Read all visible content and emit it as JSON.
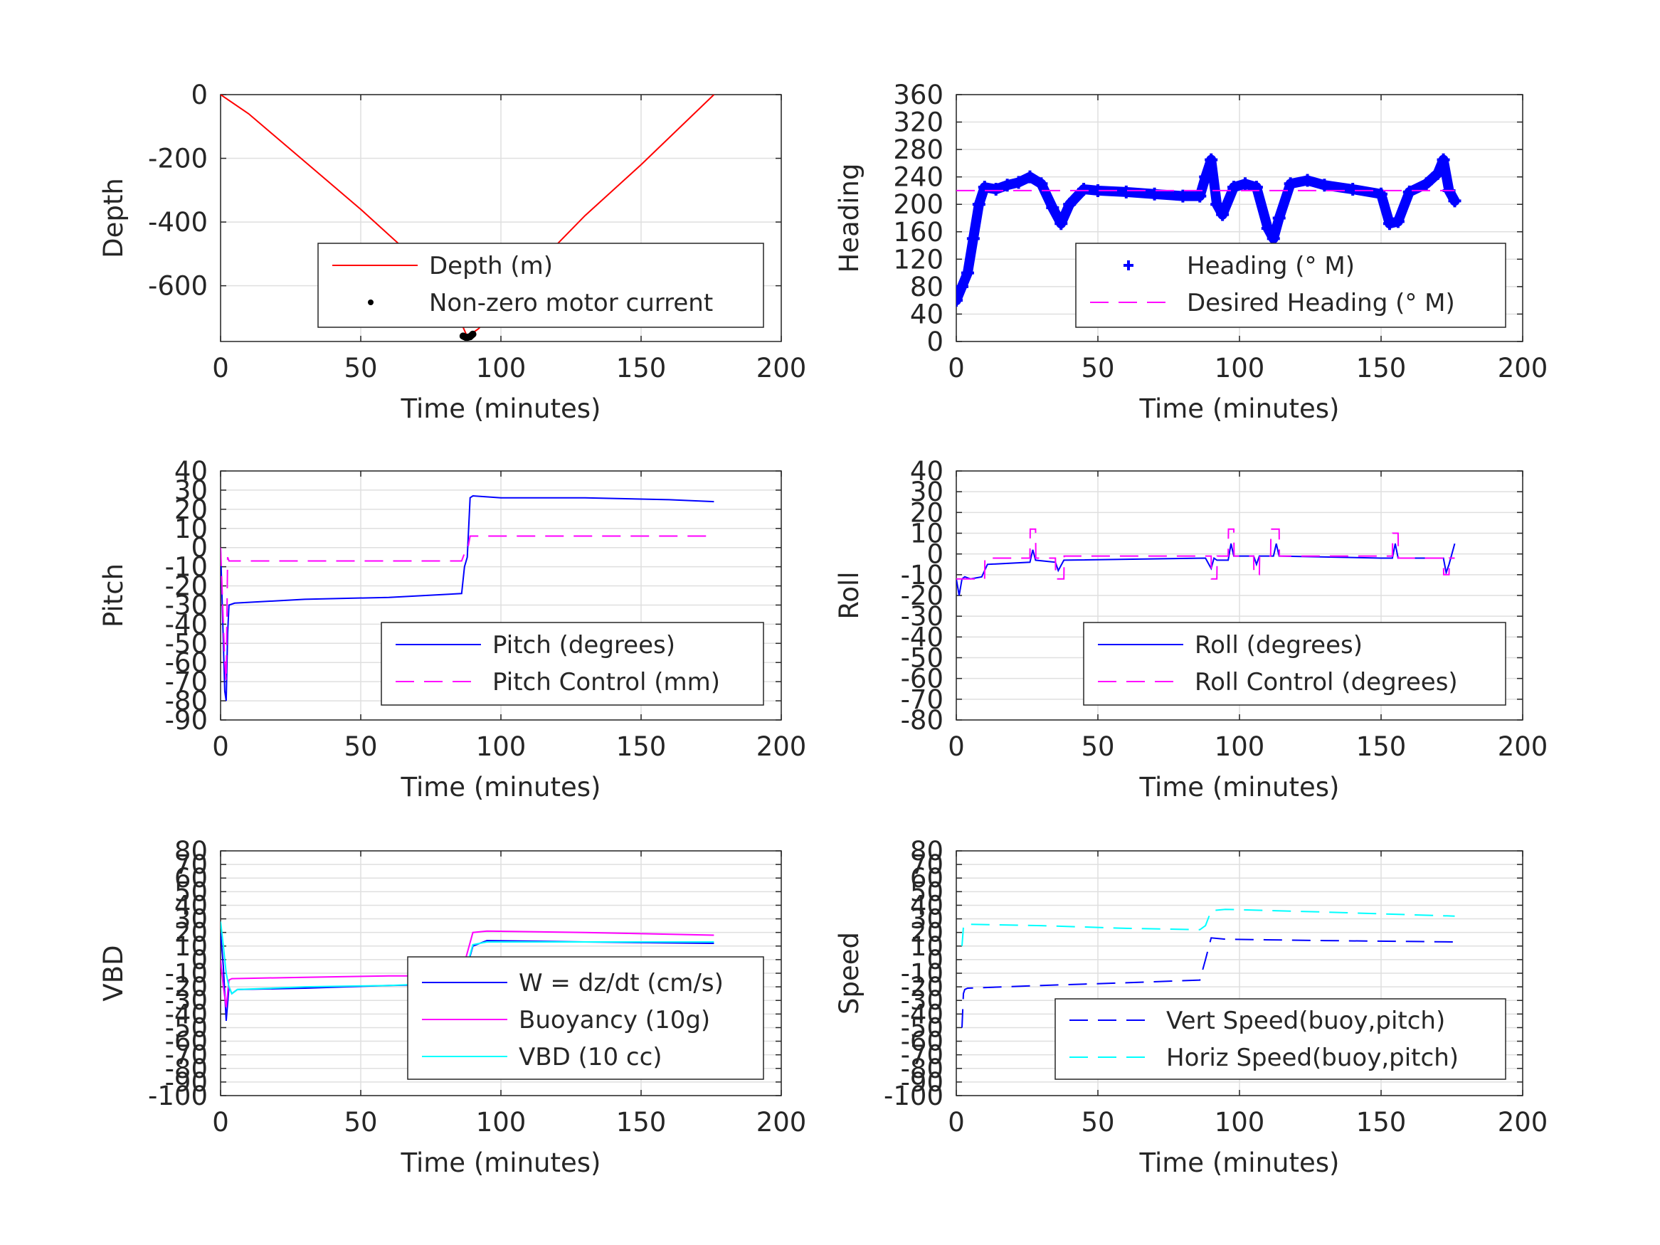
{
  "chart_data": [
    {
      "type": "line",
      "xlabel": "Time (minutes)",
      "ylabel": "Depth",
      "xlim": [
        0,
        200
      ],
      "ylim": [
        -775,
        0
      ],
      "xticks": [
        0,
        50,
        100,
        150,
        200
      ],
      "yticks": [
        0,
        -200,
        -400,
        -600
      ],
      "ytick_labels": [
        "0",
        "-200",
        "-400",
        "-600"
      ],
      "grid": true,
      "legend_position": "bottom-right",
      "series": [
        {
          "name": "Depth (m)",
          "color": "#ff0000",
          "style": "solid",
          "x": [
            0,
            10,
            30,
            50,
            70,
            85,
            88,
            92,
            110,
            130,
            150,
            176
          ],
          "y": [
            0,
            -60,
            -210,
            -360,
            -520,
            -700,
            -760,
            -735,
            -560,
            -380,
            -220,
            0
          ]
        },
        {
          "name": "Non-zero motor current",
          "color": "#000000",
          "style": "dots",
          "x": [
            86.5,
            87,
            87.5,
            88,
            88.5,
            89,
            89.5,
            90
          ],
          "y": [
            -758,
            -760,
            -762,
            -762,
            -761,
            -760,
            -756,
            -752
          ]
        }
      ]
    },
    {
      "type": "line",
      "xlabel": "Time (minutes)",
      "ylabel": "Heading",
      "xlim": [
        0,
        200
      ],
      "ylim": [
        0,
        360
      ],
      "xticks": [
        0,
        50,
        100,
        150,
        200
      ],
      "yticks": [
        0,
        40,
        80,
        120,
        160,
        200,
        240,
        280,
        320,
        360
      ],
      "ytick_labels": [
        "0",
        "40",
        "80",
        "120",
        "160",
        "200",
        "240",
        "280",
        "320",
        "360"
      ],
      "grid": true,
      "legend_position": "bottom-right",
      "series": [
        {
          "name": "Heading (° M)",
          "color": "#0000ff",
          "style": "plus",
          "x": [
            0,
            2,
            4,
            6,
            8,
            10,
            14,
            18,
            22,
            26,
            30,
            34,
            37,
            40,
            45,
            50,
            60,
            70,
            80,
            86,
            88,
            90,
            92,
            94,
            98,
            102,
            106,
            110,
            112,
            114,
            118,
            124,
            130,
            140,
            150,
            153,
            156,
            160,
            166,
            170,
            172,
            174,
            176
          ],
          "y": [
            60,
            80,
            100,
            150,
            200,
            225,
            222,
            228,
            232,
            240,
            230,
            195,
            172,
            200,
            222,
            220,
            218,
            215,
            212,
            212,
            240,
            265,
            200,
            185,
            225,
            230,
            225,
            165,
            150,
            180,
            230,
            235,
            228,
            222,
            215,
            172,
            175,
            218,
            230,
            245,
            265,
            220,
            205
          ]
        },
        {
          "name": "Desired Heading (° M)",
          "color": "#ff00ff",
          "style": "dashed",
          "x": [
            0,
            176
          ],
          "y": [
            220,
            220
          ]
        }
      ]
    },
    {
      "type": "line",
      "xlabel": "Time (minutes)",
      "ylabel": "Pitch",
      "xlim": [
        0,
        200
      ],
      "ylim": [
        -90,
        40
      ],
      "xticks": [
        0,
        50,
        100,
        150,
        200
      ],
      "yticks": [
        40,
        30,
        20,
        10,
        0,
        -10,
        -20,
        -30,
        -40,
        -50,
        -60,
        -70,
        -80,
        -90
      ],
      "ytick_labels": [
        "40",
        "30",
        "20",
        "10",
        "0",
        "-10",
        "-20",
        "-30",
        "-40",
        "-50",
        "-60",
        "-70",
        "-80",
        "-90"
      ],
      "grid": true,
      "legend_position": "bottom-right",
      "series": [
        {
          "name": "Pitch (degrees)",
          "color": "#0000ff",
          "style": "solid",
          "x": [
            0,
            1.5,
            2,
            2.5,
            3,
            5,
            30,
            60,
            86,
            87,
            88,
            89,
            90,
            100,
            130,
            160,
            176
          ],
          "y": [
            0,
            -75,
            -80,
            -45,
            -30,
            -29,
            -27,
            -26,
            -24,
            -10,
            -5,
            26,
            27,
            26,
            26,
            25,
            24
          ]
        },
        {
          "name": "Pitch Control (mm)",
          "color": "#ff00ff",
          "style": "dashed",
          "x": [
            0,
            1.5,
            2,
            2.5,
            3,
            86,
            87,
            88,
            89,
            176
          ],
          "y": [
            0,
            -60,
            -70,
            -5,
            -7,
            -7,
            -3,
            -2,
            6,
            6
          ]
        }
      ]
    },
    {
      "type": "line",
      "xlabel": "Time (minutes)",
      "ylabel": "Roll",
      "xlim": [
        0,
        200
      ],
      "ylim": [
        -80,
        40
      ],
      "xticks": [
        0,
        50,
        100,
        150,
        200
      ],
      "yticks": [
        40,
        30,
        20,
        10,
        0,
        -10,
        -20,
        -30,
        -40,
        -50,
        -60,
        -70,
        -80
      ],
      "ytick_labels": [
        "40",
        "30",
        "20",
        "10",
        "0",
        "-10",
        "-20",
        "-30",
        "-40",
        "-50",
        "-60",
        "-70",
        "-80"
      ],
      "grid": true,
      "legend_position": "bottom-right",
      "series": [
        {
          "name": "Roll (degrees)",
          "color": "#0000ff",
          "style": "solid",
          "x": [
            0,
            1,
            2,
            3,
            5,
            9,
            10,
            11,
            26,
            27,
            28,
            35,
            36,
            38,
            88,
            90,
            91,
            92,
            96,
            97,
            98,
            105,
            106,
            107,
            112,
            113,
            114,
            150,
            154,
            155,
            156,
            172,
            173,
            174,
            175,
            176
          ],
          "y": [
            -12,
            -20,
            -12,
            -11,
            -12,
            -11,
            -8,
            -5,
            -4,
            2,
            -3,
            -4,
            -8,
            -3,
            -2,
            -7,
            -2,
            -3,
            -3,
            5,
            -1,
            -1,
            -5,
            -1,
            -1,
            5,
            -1,
            -2,
            -2,
            5,
            -2,
            -2,
            -9,
            -5,
            0,
            5
          ]
        },
        {
          "name": "Roll Control (degrees)",
          "color": "#ff00ff",
          "style": "dashed",
          "x": [
            0,
            10,
            10.1,
            26,
            26.1,
            28,
            28.1,
            35,
            35.1,
            38,
            38.1,
            90,
            90.1,
            92,
            92.1,
            96,
            96.1,
            98,
            98.1,
            105,
            105.1,
            107,
            107.1,
            111,
            111.1,
            114,
            114.1,
            154,
            154.1,
            156,
            156.1,
            172,
            172.1,
            174,
            174.1,
            176
          ],
          "y": [
            -12,
            -12,
            -2,
            -2,
            12,
            12,
            -2,
            -2,
            -12,
            -12,
            -1,
            -1,
            -12,
            -12,
            -1,
            -1,
            12,
            12,
            -1,
            -1,
            -10,
            -10,
            -1,
            -1,
            12,
            12,
            -1,
            -1,
            10,
            10,
            -2,
            -2,
            -10,
            -10,
            -2,
            -2
          ]
        }
      ]
    },
    {
      "type": "line",
      "xlabel": "Time (minutes)",
      "ylabel": "VBD",
      "xlim": [
        0,
        200
      ],
      "ylim": [
        -100,
        80
      ],
      "xticks": [
        0,
        50,
        100,
        150,
        200
      ],
      "yticks": [
        80,
        70,
        60,
        50,
        40,
        30,
        20,
        10,
        0,
        -10,
        -20,
        -30,
        -40,
        -50,
        -60,
        -70,
        -80,
        -90,
        -100
      ],
      "ytick_labels": [
        "80",
        "70",
        "60",
        "50",
        "40",
        "30",
        "20",
        "10",
        "0",
        "-10",
        "-20",
        "-30",
        "-40",
        "-50",
        "-60",
        "-70",
        "-80",
        "-90",
        "-100"
      ],
      "grid": true,
      "legend_position": "bottom-right",
      "series": [
        {
          "name": "W = dz/dt (cm/s)",
          "color": "#0000ff",
          "style": "solid",
          "x": [
            0,
            1,
            2,
            3,
            4,
            6,
            30,
            60,
            85,
            86,
            88,
            90,
            95,
            130,
            176
          ],
          "y": [
            20,
            -5,
            -45,
            -20,
            -25,
            -22,
            -21,
            -19,
            -18,
            -15,
            -5,
            10,
            14,
            13,
            12
          ]
        },
        {
          "name": "Buoyancy (10g)",
          "color": "#ff00ff",
          "style": "solid",
          "x": [
            0,
            1,
            2,
            3,
            4,
            30,
            60,
            85,
            86,
            88,
            90,
            95,
            130,
            176
          ],
          "y": [
            0,
            -20,
            -35,
            -15,
            -14,
            -13,
            -12,
            -12,
            -10,
            5,
            20,
            21,
            20,
            18
          ]
        },
        {
          "name": "VBD (10 cc)",
          "color": "#00ffff",
          "style": "solid",
          "x": [
            0,
            1,
            2,
            3,
            4,
            6,
            30,
            60,
            85,
            86,
            88,
            90,
            95,
            130,
            176
          ],
          "y": [
            28,
            10,
            -10,
            -20,
            -25,
            -22,
            -20,
            -19,
            -17,
            -14,
            -4,
            11,
            13,
            13,
            13
          ]
        }
      ]
    },
    {
      "type": "line",
      "xlabel": "Time (minutes)",
      "ylabel": "Speed",
      "xlim": [
        0,
        200
      ],
      "ylim": [
        -100,
        80
      ],
      "xticks": [
        0,
        50,
        100,
        150,
        200
      ],
      "yticks": [
        80,
        70,
        60,
        50,
        40,
        30,
        20,
        10,
        0,
        -10,
        -20,
        -30,
        -40,
        -50,
        -60,
        -70,
        -80,
        -90,
        -100
      ],
      "ytick_labels": [
        "80",
        "70",
        "60",
        "50",
        "40",
        "30",
        "20",
        "10",
        "0",
        "-10",
        "-20",
        "-30",
        "-40",
        "-50",
        "-60",
        "-70",
        "-80",
        "-90",
        "-100"
      ],
      "grid": true,
      "legend_position": "bottom-right",
      "series": [
        {
          "name": "Vert Speed(buoy,pitch)",
          "color": "#0000ff",
          "style": "dashed",
          "x": [
            2,
            2.5,
            3,
            4,
            30,
            60,
            86,
            88,
            90,
            95,
            130,
            176
          ],
          "y": [
            -50,
            -25,
            -22,
            -21,
            -19,
            -17,
            -15,
            0,
            16,
            15,
            14,
            13
          ]
        },
        {
          "name": "Horiz Speed(buoy,pitch)",
          "color": "#00ffff",
          "style": "dashed",
          "x": [
            2,
            2.5,
            3,
            4,
            30,
            60,
            86,
            88,
            90,
            95,
            130,
            176
          ],
          "y": [
            10,
            24,
            26,
            26,
            25,
            23,
            22,
            25,
            36,
            37,
            35,
            32
          ]
        }
      ]
    }
  ]
}
